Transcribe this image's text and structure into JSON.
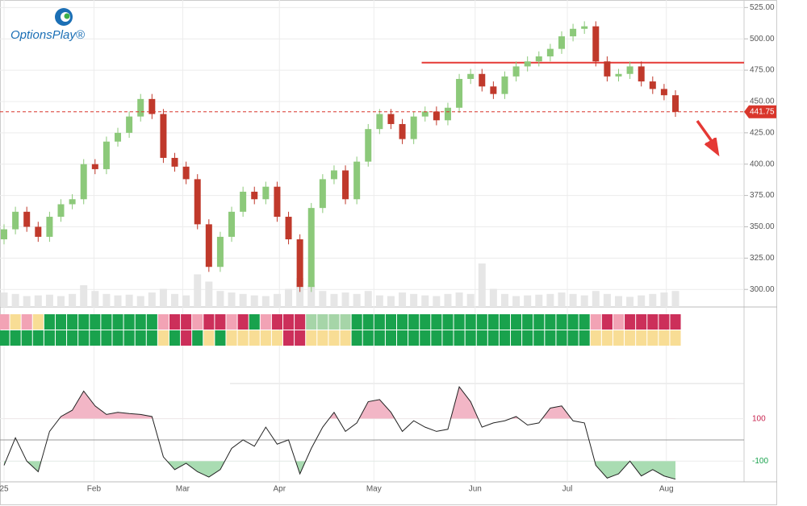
{
  "logo": {
    "text": "OptionsPlay®"
  },
  "chart_data": {
    "type": "candlestick",
    "open": [
      340,
      348,
      362,
      350,
      342,
      358,
      368,
      372,
      400,
      396,
      418,
      425,
      438,
      452,
      440,
      405,
      398,
      388,
      352,
      318,
      342,
      362,
      378,
      372,
      382,
      358,
      340,
      302,
      365,
      388,
      395,
      372,
      402,
      428,
      440,
      432,
      420,
      438,
      442,
      435,
      445,
      468,
      472,
      462,
      456,
      470,
      478,
      482,
      486,
      492,
      502,
      508,
      510,
      482,
      470,
      472,
      478,
      466,
      460,
      455
    ],
    "high": [
      352,
      366,
      366,
      354,
      362,
      372,
      376,
      404,
      404,
      422,
      429,
      442,
      456,
      456,
      444,
      409,
      402,
      392,
      356,
      346,
      366,
      382,
      382,
      386,
      386,
      362,
      344,
      369,
      392,
      399,
      399,
      406,
      432,
      444,
      444,
      436,
      442,
      446,
      446,
      449,
      472,
      476,
      476,
      466,
      474,
      482,
      486,
      490,
      496,
      506,
      512,
      514,
      514,
      486,
      476,
      482,
      482,
      470,
      464,
      459
    ],
    "low": [
      336,
      344,
      346,
      338,
      338,
      354,
      364,
      368,
      392,
      392,
      414,
      421,
      434,
      436,
      401,
      394,
      384,
      348,
      314,
      314,
      338,
      358,
      368,
      368,
      354,
      336,
      298,
      298,
      361,
      384,
      368,
      368,
      398,
      424,
      428,
      416,
      416,
      434,
      431,
      431,
      441,
      464,
      458,
      452,
      452,
      466,
      474,
      478,
      482,
      488,
      498,
      504,
      478,
      466,
      466,
      468,
      462,
      456,
      451,
      437.75
    ],
    "close": [
      348,
      362,
      350,
      342,
      358,
      368,
      372,
      400,
      396,
      418,
      425,
      438,
      452,
      440,
      405,
      398,
      388,
      352,
      318,
      342,
      362,
      378,
      372,
      382,
      358,
      340,
      302,
      365,
      388,
      395,
      372,
      402,
      428,
      440,
      432,
      420,
      438,
      442,
      435,
      445,
      468,
      472,
      462,
      456,
      470,
      478,
      482,
      486,
      492,
      502,
      508,
      510,
      482,
      470,
      472,
      478,
      466,
      460,
      455,
      441.75
    ],
    "volume": [
      20,
      18,
      15,
      16,
      17,
      15,
      18,
      30,
      22,
      18,
      16,
      17,
      15,
      20,
      25,
      18,
      16,
      45,
      35,
      22,
      20,
      18,
      16,
      15,
      18,
      25,
      40,
      30,
      22,
      18,
      20,
      18,
      22,
      16,
      15,
      20,
      18,
      16,
      15,
      18,
      20,
      18,
      60,
      25,
      18,
      15,
      16,
      17,
      18,
      20,
      18,
      16,
      22,
      18,
      15,
      14,
      16,
      18,
      20,
      22
    ],
    "vlim": [
      0,
      100
    ],
    "up_color": "#8cc97a",
    "down_color": "#c0392b",
    "volume_color": "#e6e6e6",
    "ylim": [
      286,
      531
    ],
    "yticks": [
      {
        "value": 300,
        "label": "300.00"
      },
      {
        "value": 325,
        "label": "325.00"
      },
      {
        "value": 350,
        "label": "350.00"
      },
      {
        "value": 375,
        "label": "375.00"
      },
      {
        "value": 400,
        "label": "400.00"
      },
      {
        "value": 425,
        "label": "425.00"
      },
      {
        "value": 450,
        "label": "450.00"
      },
      {
        "value": 475,
        "label": "475.00"
      },
      {
        "value": 500,
        "label": "500.00"
      },
      {
        "value": 525,
        "label": "525.00"
      }
    ],
    "xticks": [
      {
        "value": 0,
        "label": "25"
      },
      {
        "value": 7.9,
        "label": "Feb"
      },
      {
        "value": 15.7,
        "label": "Mar"
      },
      {
        "value": 24.2,
        "label": "Apr"
      },
      {
        "value": 32.5,
        "label": "May"
      },
      {
        "value": 41.4,
        "label": "Jun"
      },
      {
        "value": 49.5,
        "label": "Jul"
      },
      {
        "value": 58.2,
        "label": "Aug"
      }
    ],
    "last_price": {
      "value": 441.75,
      "label": "441.75",
      "color": "#d9362b"
    },
    "resistance": {
      "value": 481,
      "x_start": 36.7,
      "color": "#e53935"
    },
    "grid": true,
    "strips": [
      [
        "#f2a3b5",
        "#f8dd95",
        "#f2a3b5",
        "#f8dd95",
        "#19a24d",
        "#19a24d",
        "#19a24d",
        "#19a24d",
        "#19a24d",
        "#19a24d",
        "#19a24d",
        "#19a24d",
        "#19a24d",
        "#19a24d",
        "#f2a3b5",
        "#cc2f5a",
        "#cc2f5a",
        "#f2a3b5",
        "#cc2f5a",
        "#cc2f5a",
        "#f2a3b5",
        "#cc2f5a",
        "#19a24d",
        "#f2a3b5",
        "#cc2f5a",
        "#cc2f5a",
        "#cc2f5a",
        "#a6d5a8",
        "#a6d5a8",
        "#a6d5a8",
        "#a6d5a8",
        "#19a24d",
        "#19a24d",
        "#19a24d",
        "#19a24d",
        "#19a24d",
        "#19a24d",
        "#19a24d",
        "#19a24d",
        "#19a24d",
        "#19a24d",
        "#19a24d",
        "#19a24d",
        "#19a24d",
        "#19a24d",
        "#19a24d",
        "#19a24d",
        "#19a24d",
        "#19a24d",
        "#19a24d",
        "#19a24d",
        "#19a24d",
        "#f2a3b5",
        "#cc2f5a",
        "#f2a3b5",
        "#cc2f5a",
        "#cc2f5a",
        "#cc2f5a",
        "#cc2f5a",
        "#cc2f5a"
      ],
      [
        "#19a24d",
        "#19a24d",
        "#19a24d",
        "#19a24d",
        "#19a24d",
        "#19a24d",
        "#19a24d",
        "#19a24d",
        "#19a24d",
        "#19a24d",
        "#19a24d",
        "#19a24d",
        "#19a24d",
        "#19a24d",
        "#f8dd95",
        "#19a24d",
        "#cc2f5a",
        "#19a24d",
        "#f8dd95",
        "#19a24d",
        "#f8dd95",
        "#f8dd95",
        "#f8dd95",
        "#f8dd95",
        "#f8dd95",
        "#cc2f5a",
        "#cc2f5a",
        "#f8dd95",
        "#f8dd95",
        "#f8dd95",
        "#f8dd95",
        "#19a24d",
        "#19a24d",
        "#19a24d",
        "#19a24d",
        "#19a24d",
        "#19a24d",
        "#19a24d",
        "#19a24d",
        "#19a24d",
        "#19a24d",
        "#19a24d",
        "#19a24d",
        "#19a24d",
        "#19a24d",
        "#19a24d",
        "#19a24d",
        "#19a24d",
        "#19a24d",
        "#19a24d",
        "#19a24d",
        "#19a24d",
        "#f8dd95",
        "#f8dd95",
        "#f8dd95",
        "#f8dd95",
        "#f8dd95",
        "#f8dd95",
        "#f8dd95",
        "#f8dd95"
      ]
    ],
    "cci": {
      "values": [
        -120,
        10,
        -100,
        -150,
        40,
        110,
        140,
        230,
        160,
        120,
        130,
        124,
        120,
        110,
        -80,
        -140,
        -110,
        -150,
        -175,
        -140,
        -40,
        0,
        -30,
        60,
        -20,
        0,
        -160,
        -40,
        60,
        130,
        40,
        80,
        180,
        190,
        130,
        40,
        90,
        60,
        40,
        50,
        250,
        180,
        60,
        80,
        90,
        110,
        70,
        80,
        150,
        160,
        90,
        80,
        -120,
        -180,
        -160,
        -100,
        -170,
        -140,
        -170,
        -185
      ],
      "ylim": [
        -190,
        258
      ],
      "yticks": [
        -100,
        100
      ],
      "line_color": "#222222",
      "over_color": "#f2b6c6",
      "under_color": "#a9dcb2",
      "over_label_color": "#c8234e",
      "under_label_color": "#19a24d"
    }
  }
}
